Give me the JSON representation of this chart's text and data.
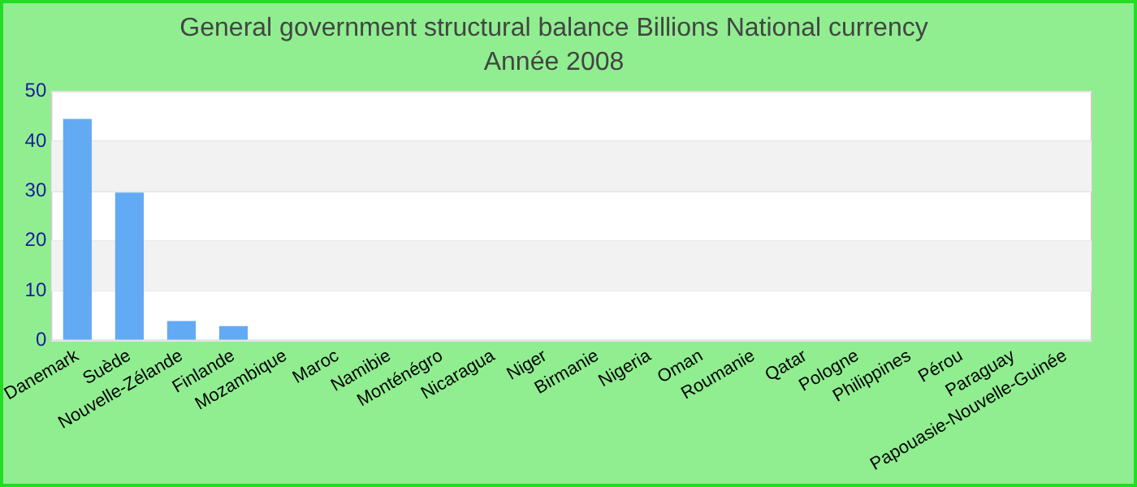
{
  "chart_data": {
    "type": "bar",
    "title": "General government structural balance Billions National currency",
    "subtitle": "Année 2008",
    "categories": [
      "Danemark",
      "Suède",
      "Nouvelle-Zélande",
      "Finlande",
      "Mozambique",
      "Maroc",
      "Namibie",
      "Monténégro",
      "Nicaragua",
      "Niger",
      "Birmanie",
      "Nigeria",
      "Oman",
      "Roumanie",
      "Qatar",
      "Pologne",
      "Philippines",
      "Pérou",
      "Paraguay",
      "Papouasie-Nouvelle-Guinée"
    ],
    "values": [
      44.5,
      29.7,
      3.9,
      2.9,
      0,
      0,
      0,
      0,
      0,
      0,
      0,
      0,
      0,
      0,
      0,
      0,
      0,
      0,
      0,
      0
    ],
    "color": "#63aaf5",
    "ylim": [
      0,
      50
    ],
    "yticks": [
      0,
      10,
      20,
      30,
      40,
      50
    ],
    "grid": "y",
    "legend": false
  }
}
